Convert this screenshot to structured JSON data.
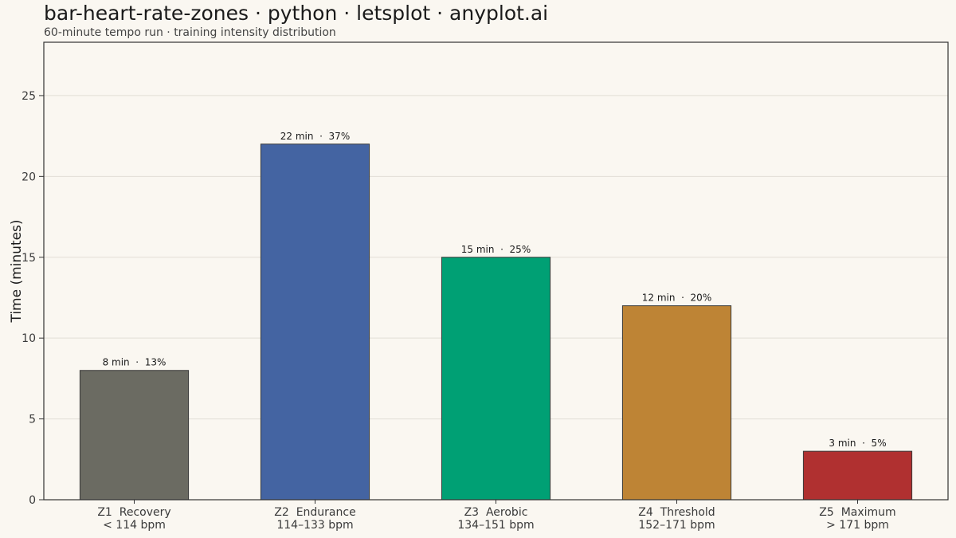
{
  "chart_data": {
    "type": "bar",
    "title": "bar-heart-rate-zones · python · letsplot · anyplot.ai",
    "subtitle": "60-minute tempo run  ·  training intensity distribution",
    "ylabel": "Time (minutes)",
    "xlabel": "",
    "ylim": [
      0,
      28.3
    ],
    "yticks": [
      0,
      5,
      10,
      15,
      20,
      25
    ],
    "grid": true,
    "categories": [
      {
        "zone": "Z1  Recovery",
        "range": "< 114 bpm"
      },
      {
        "zone": "Z2  Endurance",
        "range": "114–133 bpm"
      },
      {
        "zone": "Z3  Aerobic",
        "range": "134–151 bpm"
      },
      {
        "zone": "Z4  Threshold",
        "range": "152–171 bpm"
      },
      {
        "zone": "Z5  Maximum",
        "range": "> 171 bpm"
      }
    ],
    "values": [
      8,
      22,
      15,
      12,
      3
    ],
    "data_labels": [
      "8 min  ·  13%",
      "22 min  ·  37%",
      "15 min  ·  25%",
      "12 min  ·  20%",
      "3 min  ·  5%"
    ],
    "colors": [
      "#6b6b62",
      "#4464a2",
      "#00a074",
      "#be8435",
      "#b03030"
    ]
  }
}
